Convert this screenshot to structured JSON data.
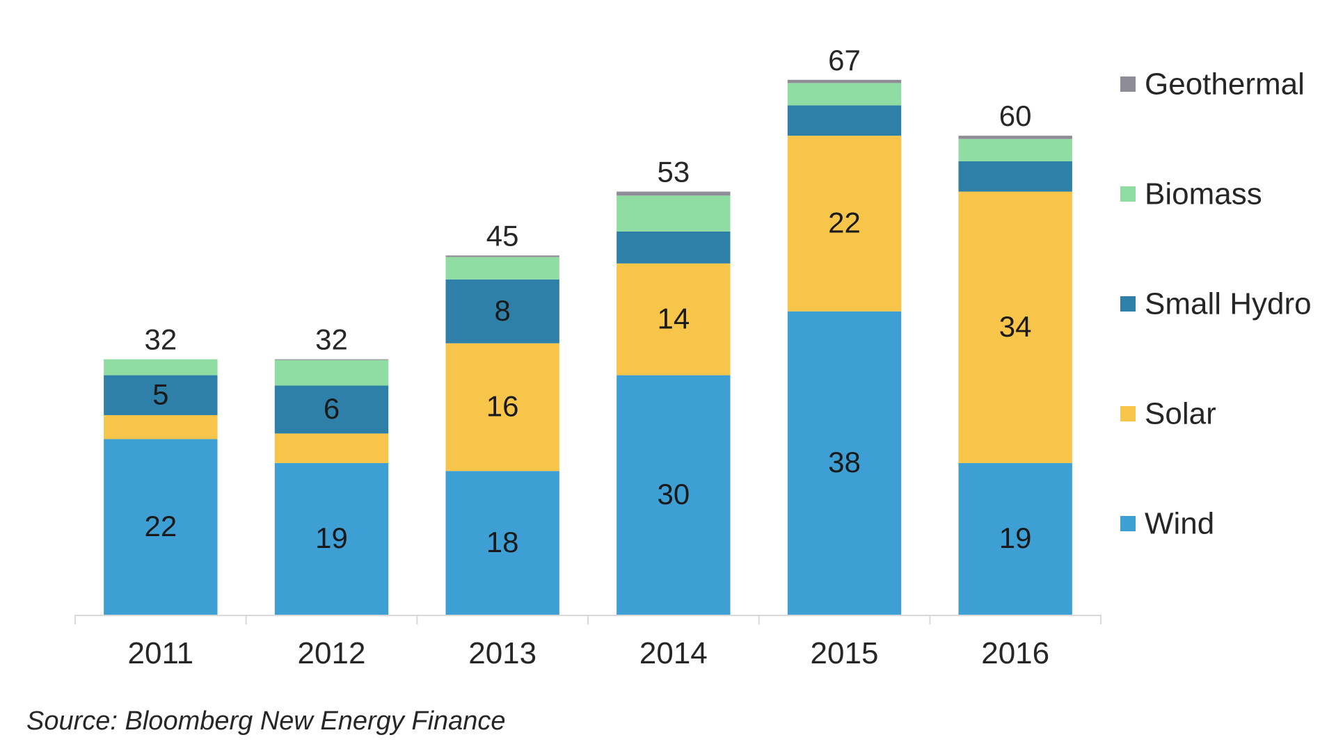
{
  "chart_data": {
    "type": "bar",
    "stacked": true,
    "title": "",
    "xlabel": "",
    "ylabel": "",
    "ylim": [
      0,
      77
    ],
    "grid": false,
    "legend_position": "right",
    "categories": [
      "2011",
      "2012",
      "2013",
      "2014",
      "2015",
      "2016"
    ],
    "totals": [
      32,
      32,
      45,
      53,
      67,
      60
    ],
    "series": [
      {
        "name": "Wind",
        "color": "#3e9fd5",
        "values": [
          22,
          19,
          18,
          30,
          38,
          19
        ],
        "labels": [
          "22",
          "19",
          "18",
          "30",
          "38",
          "19"
        ]
      },
      {
        "name": "Solar",
        "color": "#f6c54a",
        "values": [
          3,
          3.7,
          16,
          14,
          22,
          34
        ],
        "labels": [
          "",
          "",
          "16",
          "14",
          "22",
          "34"
        ]
      },
      {
        "name": "Small Hydro",
        "color": "#2e80a8",
        "values": [
          5,
          6,
          8,
          4,
          3.8,
          3.8
        ],
        "labels": [
          "5",
          "6",
          "8",
          "",
          "",
          ""
        ]
      },
      {
        "name": "Biomass",
        "color": "#8fdda2",
        "values": [
          2,
          3.2,
          2.8,
          4.5,
          2.8,
          2.8
        ],
        "labels": [
          "",
          "",
          "",
          "",
          "",
          ""
        ]
      },
      {
        "name": "Geothermal",
        "color": "#8e8c96",
        "values": [
          0,
          0.1,
          0.2,
          0.5,
          0.4,
          0.4
        ],
        "labels": [
          "",
          "",
          "",
          "",
          "",
          ""
        ]
      }
    ],
    "legend_order": [
      "Geothermal",
      "Biomass",
      "Small Hydro",
      "Solar",
      "Wind"
    ],
    "axis_color": "#d9d9d9"
  },
  "source": "Source: Bloomberg New Energy Finance"
}
